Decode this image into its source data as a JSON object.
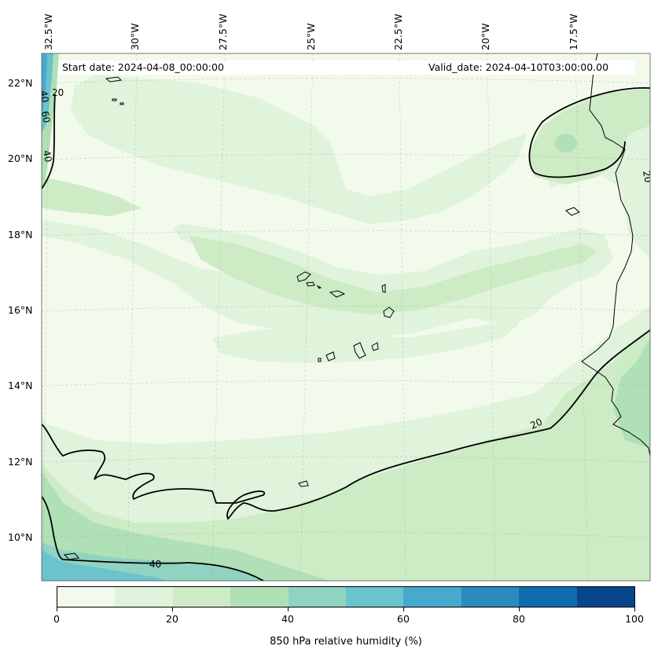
{
  "title": {
    "start": "Start date: 2024-04-08_00:00:00",
    "valid": "Valid_date: 2024-04-10T03:00:00.00"
  },
  "lon_labels": [
    "32.5°W",
    "30°W",
    "27.5°W",
    "25°W",
    "22.5°W",
    "20°W",
    "17.5°W"
  ],
  "lat_labels": [
    "22°N",
    "20°N",
    "18°N",
    "16°N",
    "14°N",
    "12°N",
    "10°N"
  ],
  "contour_labels": [
    "20",
    "40",
    "40",
    "60",
    "20",
    "40",
    "20"
  ],
  "colorbar": {
    "label": "850 hPa relative humidity (%)",
    "ticks": [
      "0",
      "20",
      "40",
      "60",
      "80",
      "100"
    ],
    "colors": [
      "#f2faeb",
      "#e0f3db",
      "#cdebc5",
      "#b0e0b6",
      "#8fd3c0",
      "#6bc3cd",
      "#48a9cf",
      "#2b8bbe",
      "#0e6caf",
      "#08468b"
    ]
  }
}
